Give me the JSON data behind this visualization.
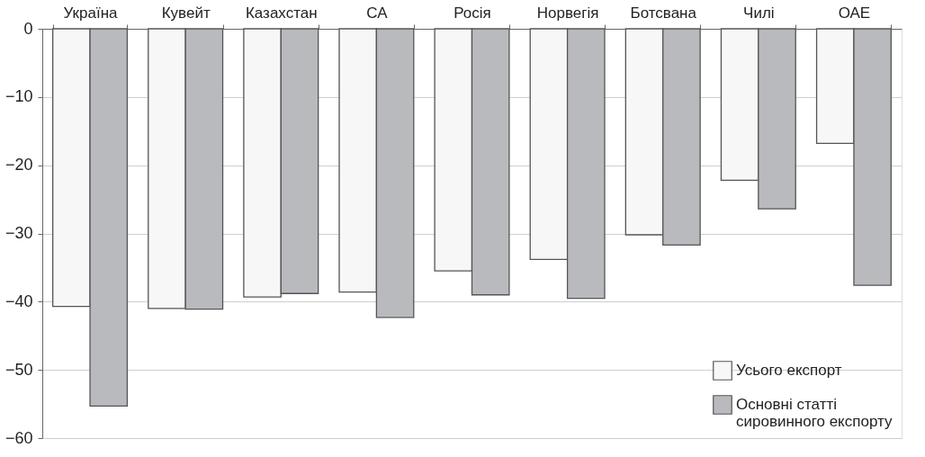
{
  "chart_data": {
    "type": "bar",
    "categories": [
      "Україна",
      "Кувейт",
      "Казахстан",
      "СА",
      "Росія",
      "Норвегія",
      "Ботсвана",
      "Чилі",
      "ОАЕ"
    ],
    "series": [
      {
        "name": "Усього експорт",
        "color": "#f7f7f7",
        "values": [
          -40.7,
          -41.0,
          -39.3,
          -38.6,
          -35.5,
          -33.8,
          -30.2,
          -22.2,
          -16.8
        ]
      },
      {
        "name": "Основні статті сировинного експорту",
        "color": "#b9babe",
        "values": [
          -55.3,
          -41.1,
          -38.8,
          -42.3,
          -39.0,
          -39.5,
          -31.7,
          -26.4,
          -37.6
        ]
      }
    ],
    "ylim": [
      -60,
      0
    ],
    "yticks": [
      0,
      -10,
      -20,
      -30,
      -40,
      -50,
      -60
    ],
    "grid": "y",
    "legend": "bottom right"
  }
}
